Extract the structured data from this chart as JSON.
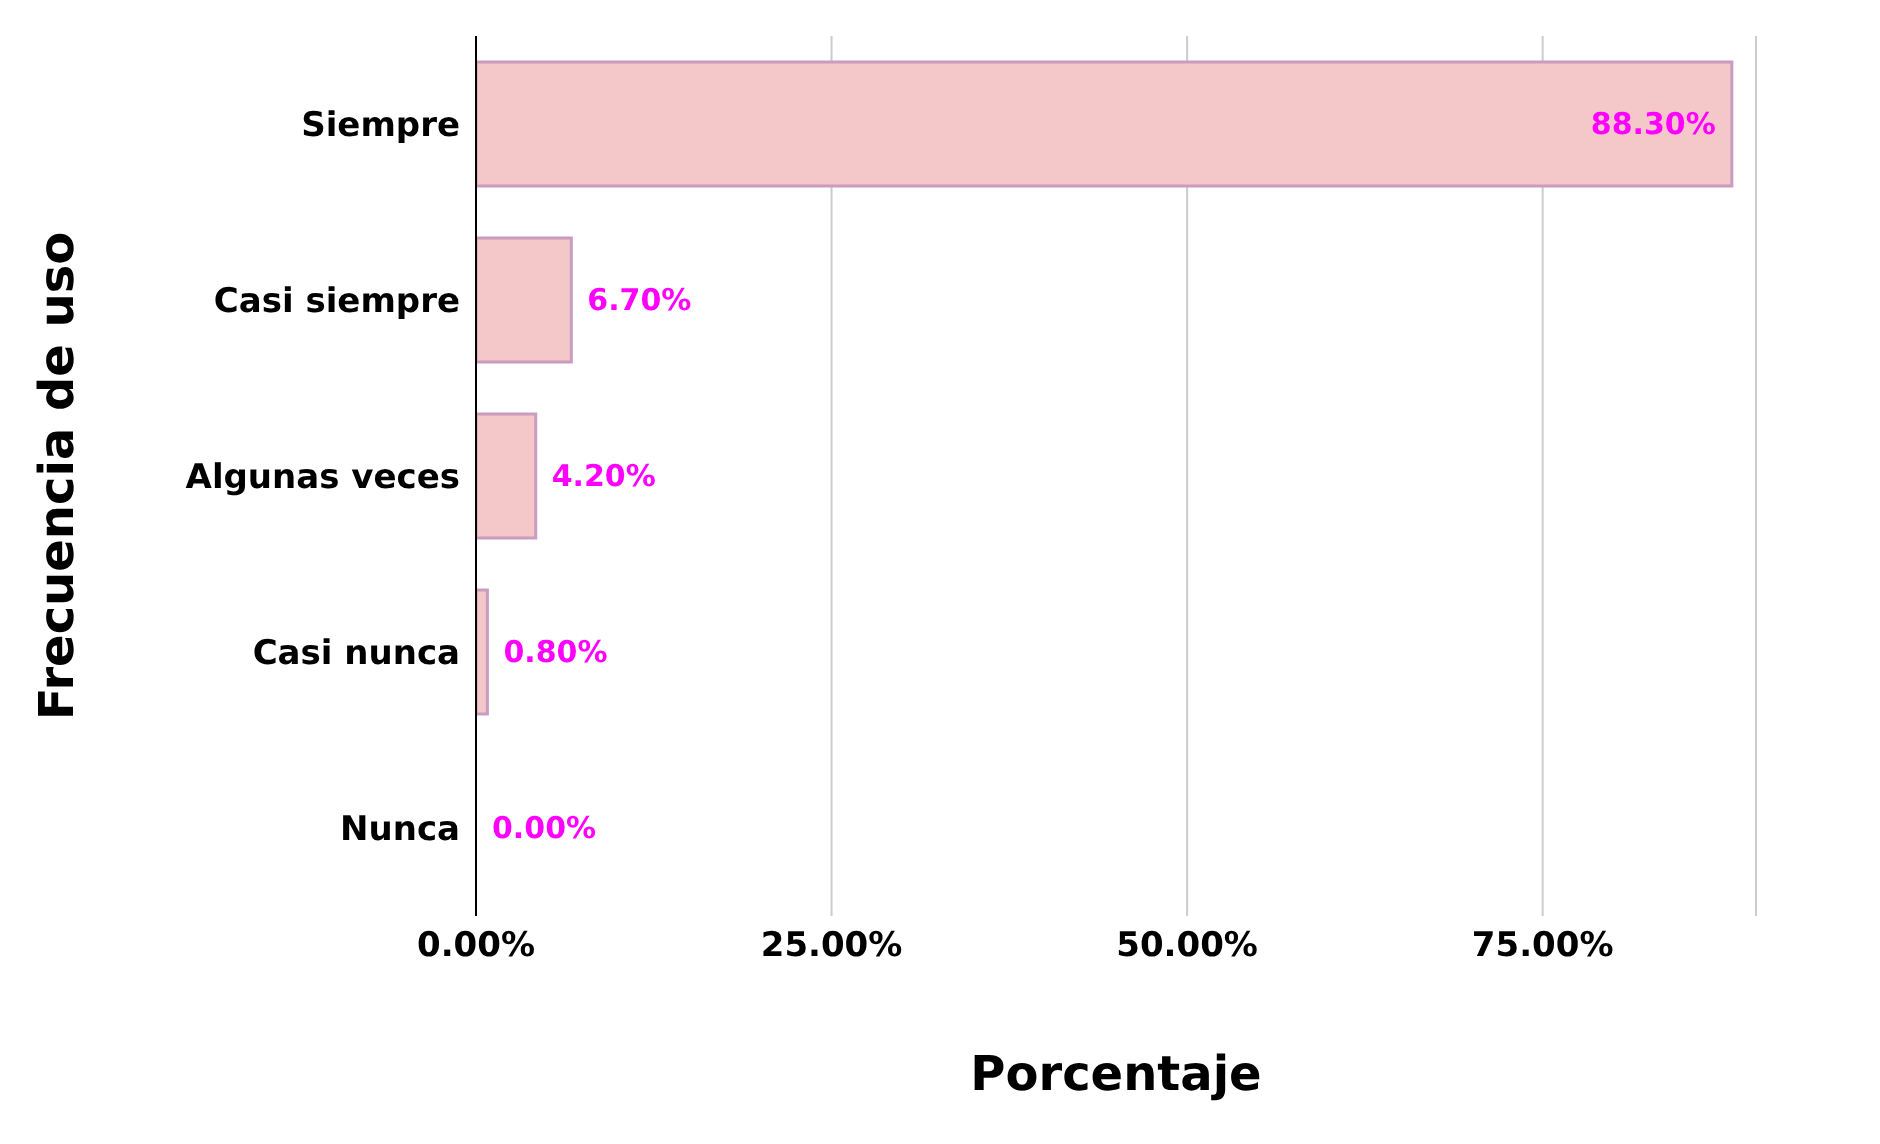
{
  "chart_data": {
    "type": "bar",
    "orientation": "horizontal",
    "xlabel": "Porcentaje",
    "ylabel": "Frecuencia de uso",
    "categories": [
      "Siempre",
      "Casi siempre",
      "Algunas veces",
      "Casi nunca",
      "Nunca"
    ],
    "values": [
      88.3,
      6.7,
      4.2,
      0.8,
      0
    ],
    "value_labels": [
      "88.30%",
      "6.70%",
      "4.20%",
      "0.80%",
      "0.00%"
    ],
    "color": "#f4c7c9",
    "xlim": [
      0,
      90
    ],
    "xticks": [
      {
        "value": 0,
        "label": "0.00%"
      },
      {
        "value": 25,
        "label": "25.00%"
      },
      {
        "value": 50,
        "label": "50.00%"
      },
      {
        "value": 75,
        "label": "75.00%"
      }
    ],
    "grid": "x",
    "legend": false
  }
}
